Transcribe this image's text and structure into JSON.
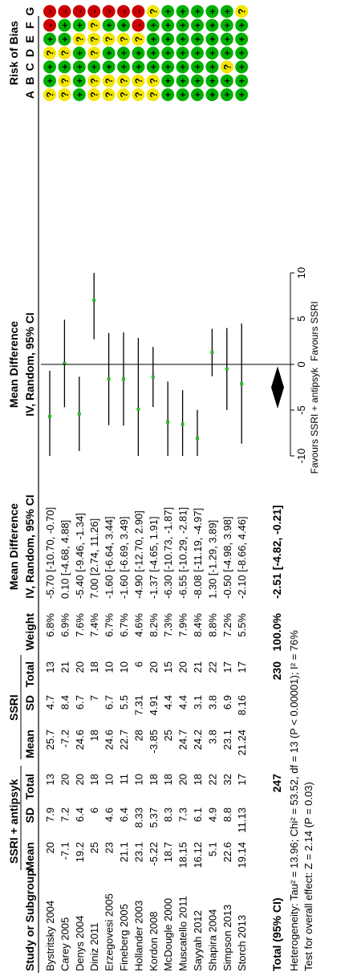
{
  "chart_data": {
    "type": "forest",
    "group_header_experimental": "SSRI + antipsyk",
    "group_header_control": "SSRI",
    "column_headers": {
      "study": "Study or Subgroup",
      "mean_e": "Mean",
      "sd_e": "SD",
      "total_e": "Total",
      "mean_c": "Mean",
      "sd_c": "SD",
      "total_c": "Total",
      "weight": "Weight",
      "md_title": "Mean Difference",
      "md_method": "IV, Random, 95% CI",
      "plot_title": "Mean Difference",
      "plot_method": "IV, Random, 95% CI",
      "rob_title": "Risk of Bias",
      "rob_letters": [
        "A",
        "B",
        "C",
        "D",
        "E",
        "F",
        "G"
      ]
    },
    "studies": [
      {
        "name": "Bystritsky 2004",
        "mean_e": "20",
        "sd_e": "7.9",
        "total_e": "13",
        "mean_c": "25.7",
        "sd_c": "4.7",
        "total_c": "13",
        "weight": "6.8%",
        "ci_text": "-5.70 [-10.70, -0.70]",
        "md": -5.7,
        "lo": -10.7,
        "hi": -0.7,
        "rob": [
          "?",
          "+",
          "+",
          "?",
          "+",
          "-",
          "-"
        ]
      },
      {
        "name": "Carey 2005",
        "mean_e": "-7.1",
        "sd_e": "7.2",
        "total_e": "20",
        "mean_c": "-7.2",
        "sd_c": "8.4",
        "total_c": "21",
        "weight": "6.9%",
        "ci_text": "0.10 [-4.68, 4.88]",
        "md": 0.1,
        "lo": -4.68,
        "hi": 4.88,
        "rob": [
          "?",
          "?",
          "+",
          "?",
          "+",
          "+",
          "-"
        ]
      },
      {
        "name": "Denys 2004",
        "mean_e": "19.2",
        "sd_e": "6.4",
        "total_e": "20",
        "mean_c": "24.6",
        "sd_c": "6.7",
        "total_c": "20",
        "weight": "7.6%",
        "ci_text": "-5.40 [-9.46, -1.34]",
        "md": -5.4,
        "lo": -9.46,
        "hi": -1.34,
        "rob": [
          "+",
          "+",
          "+",
          "+",
          "?",
          "+",
          "-"
        ]
      },
      {
        "name": "Diniz 2011",
        "mean_e": "25",
        "sd_e": "6",
        "total_e": "18",
        "mean_c": "18",
        "sd_c": "7",
        "total_c": "18",
        "weight": "7.4%",
        "ci_text": "7.00 [2.74, 11.26]",
        "md": 7.0,
        "lo": 2.74,
        "hi": 11.26,
        "rob": [
          "?",
          "?",
          "+",
          "?",
          "?",
          "?",
          "-"
        ]
      },
      {
        "name": "Erzegovesi 2005",
        "mean_e": "23",
        "sd_e": "4.6",
        "total_e": "10",
        "mean_c": "24.6",
        "sd_c": "6.7",
        "total_c": "10",
        "weight": "6.7%",
        "ci_text": "-1.60 [-6.64, 3.44]",
        "md": -1.6,
        "lo": -6.64,
        "hi": 3.44,
        "rob": [
          "?",
          "?",
          "+",
          "+",
          "?",
          "+",
          "-"
        ]
      },
      {
        "name": "Fineberg 2005",
        "mean_e": "21.1",
        "sd_e": "6.4",
        "total_e": "11",
        "mean_c": "22.7",
        "sd_c": "5.5",
        "total_c": "10",
        "weight": "6.7%",
        "ci_text": "-1.60 [-6.69, 3.49]",
        "md": -1.6,
        "lo": -6.69,
        "hi": 3.49,
        "rob": [
          "?",
          "?",
          "+",
          "+",
          "?",
          "+",
          "-"
        ]
      },
      {
        "name": "Hollander 2003",
        "mean_e": "23.1",
        "sd_e": "8.33",
        "total_e": "10",
        "mean_c": "28",
        "sd_c": "7.31",
        "total_c": "6",
        "weight": "4.6%",
        "ci_text": "-4.90 [-12.70, 2.90]",
        "md": -4.9,
        "lo": -12.7,
        "hi": 2.9,
        "rob": [
          "?",
          "?",
          "+",
          "+",
          "?",
          "-",
          "-"
        ]
      },
      {
        "name": "Kordon 2008",
        "mean_e": "-5.22",
        "sd_e": "5.37",
        "total_e": "18",
        "mean_c": "-3.85",
        "sd_c": "4.91",
        "total_c": "20",
        "weight": "8.2%",
        "ci_text": "-1.37 [-4.65, 1.91]",
        "md": -1.37,
        "lo": -4.65,
        "hi": 1.91,
        "rob": [
          "?",
          "?",
          "+",
          "+",
          "+",
          "+",
          "?"
        ]
      },
      {
        "name": "McDougle 2000",
        "mean_e": "18.7",
        "sd_e": "8.3",
        "total_e": "18",
        "mean_c": "25",
        "sd_c": "4.4",
        "total_c": "15",
        "weight": "7.3%",
        "ci_text": "-6.30 [-10.73, -1.87]",
        "md": -6.3,
        "lo": -10.73,
        "hi": -1.87,
        "rob": [
          "+",
          "+",
          "+",
          "+",
          "+",
          "+",
          "+"
        ]
      },
      {
        "name": "Muscatello 2011",
        "mean_e": "18.15",
        "sd_e": "7.3",
        "total_e": "20",
        "mean_c": "24.7",
        "sd_c": "4.4",
        "total_c": "20",
        "weight": "7.9%",
        "ci_text": "-6.55 [-10.29, -2.81]",
        "md": -6.55,
        "lo": -10.29,
        "hi": -2.81,
        "rob": [
          "+",
          "+",
          "+",
          "+",
          "+",
          "+",
          "+"
        ]
      },
      {
        "name": "Sayyah 2012",
        "mean_e": "16.12",
        "sd_e": "6.1",
        "total_e": "18",
        "mean_c": "24.2",
        "sd_c": "3.1",
        "total_c": "21",
        "weight": "8.4%",
        "ci_text": "-8.08 [-11.19, -4.97]",
        "md": -8.08,
        "lo": -11.19,
        "hi": -4.97,
        "rob": [
          "+",
          "+",
          "+",
          "+",
          "+",
          "+",
          "+"
        ]
      },
      {
        "name": "Shapira 2004",
        "mean_e": "5.1",
        "sd_e": "4.9",
        "total_e": "22",
        "mean_c": "3.8",
        "sd_c": "3.8",
        "total_c": "22",
        "weight": "8.8%",
        "ci_text": "1.30 [-1.29, 3.89]",
        "md": 1.3,
        "lo": -1.29,
        "hi": 3.89,
        "rob": [
          "+",
          "+",
          "+",
          "+",
          "+",
          "+",
          "+"
        ]
      },
      {
        "name": "Simpson 2013",
        "mean_e": "22.6",
        "sd_e": "8.8",
        "total_e": "32",
        "mean_c": "23.1",
        "sd_c": "6.9",
        "total_c": "17",
        "weight": "7.2%",
        "ci_text": "-0.50 [-4.98, 3.98]",
        "md": -0.5,
        "lo": -4.98,
        "hi": 3.98,
        "rob": [
          "+",
          "+",
          "?",
          "+",
          "+",
          "+",
          "+"
        ]
      },
      {
        "name": "Storch 2013",
        "mean_e": "19.14",
        "sd_e": "11.13",
        "total_e": "17",
        "mean_c": "21.24",
        "sd_c": "8.16",
        "total_c": "17",
        "weight": "5.5%",
        "ci_text": "-2.10 [-8.66, 4.46]",
        "md": -2.1,
        "lo": -8.66,
        "hi": 4.46,
        "rob": [
          "+",
          "+",
          "+",
          "+",
          "+",
          "+",
          "?"
        ]
      }
    ],
    "total": {
      "label": "Total (95% CI)",
      "total_e": "247",
      "total_c": "230",
      "weight": "100.0%",
      "ci_text": "-2.51 [-4.82, -0.21]",
      "md": -2.51,
      "lo": -4.82,
      "hi": -0.21
    },
    "heterogeneity": "Heterogeneity: Tau² = 13.96; Chi² = 53.52, df = 13 (P < 0.00001); I² = 76%",
    "overall_effect": "Test for overall effect: Z = 2.14 (P = 0.03)",
    "axis": {
      "min": -10,
      "max": 10,
      "ticks": [
        -10,
        -5,
        0,
        5,
        10
      ],
      "tick_labels": [
        "-10",
        "-5",
        "0",
        "5",
        "10"
      ],
      "favours_left": "Favours SSRI + antipsyk",
      "favours_right": "Favours SSRI"
    },
    "colors": {
      "point": "#2db82d",
      "low_risk": "#00b000",
      "unclear_risk": "#f2e600",
      "high_risk": "#cc0000",
      "line": "#000000"
    }
  }
}
